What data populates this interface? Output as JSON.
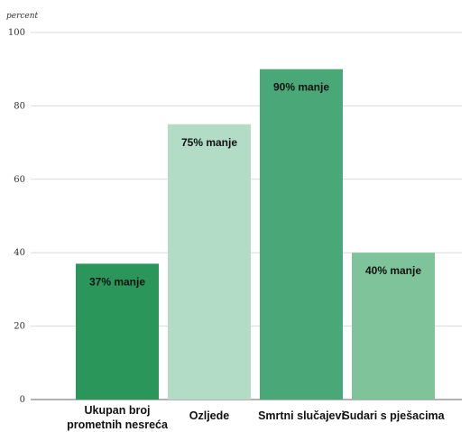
{
  "chart_data": {
    "type": "bar",
    "ylabel": "percent",
    "ylim": [
      0,
      100
    ],
    "yticks": [
      0,
      20,
      40,
      60,
      80,
      100
    ],
    "grid": true,
    "categories": [
      [
        "Ukupan broj",
        "prometnih nesreća"
      ],
      [
        "Ozljede"
      ],
      [
        "Smrtni slučajevi"
      ],
      [
        "Sudari s pješacima"
      ]
    ],
    "values": [
      37,
      75,
      90,
      40
    ],
    "data_labels": [
      "37% manje",
      "75% manje",
      "90% manje",
      "40% manje"
    ],
    "colors": [
      "#2b9659",
      "#b3dcc6",
      "#4aa878",
      "#7fc39b"
    ]
  }
}
